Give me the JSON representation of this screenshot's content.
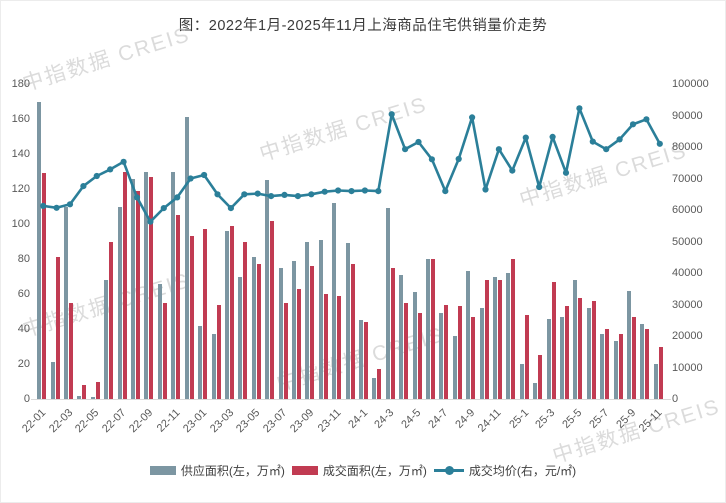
{
  "title": "图：2022年1月-2025年11月上海商品住宅供销量价走势",
  "watermark_text": "中指数据 CREIS",
  "legend": [
    {
      "label": "供应面积(左，万㎡)",
      "color": "#7C96A2",
      "type": "bar"
    },
    {
      "label": "成交面积(左，万㎡)",
      "color": "#C13B52",
      "type": "bar"
    },
    {
      "label": "成交均价(右，元/㎡)",
      "color": "#2B7F99",
      "type": "line"
    }
  ],
  "chart_data": {
    "type": "bar+line combo, dual axis",
    "title": "图：2022年1月-2025年11月上海商品住宅供销量价走势",
    "categories": [
      "22-01",
      "22-02",
      "22-03",
      "22-04",
      "22-05",
      "22-06",
      "22-07",
      "22-08",
      "22-09",
      "22-10",
      "22-11",
      "22-12",
      "23-01",
      "23-02",
      "23-03",
      "23-04",
      "23-05",
      "23-06",
      "23-07",
      "23-08",
      "23-09",
      "23-10",
      "23-11",
      "23-12",
      "24-1",
      "24-2",
      "24-3",
      "24-4",
      "24-5",
      "24-6",
      "24-7",
      "24-8",
      "24-9",
      "24-10",
      "24-11",
      "24-12",
      "25-1",
      "25-2",
      "25-3",
      "25-4",
      "25-5",
      "25-6",
      "25-7",
      "25-8",
      "25-9",
      "25-10",
      "25-11"
    ],
    "x_tick_labels": [
      "22-01",
      "22-03",
      "22-05",
      "22-07",
      "22-09",
      "22-11",
      "23-01",
      "23-03",
      "23-05",
      "23-07",
      "23-09",
      "23-11",
      "24-1",
      "24-3",
      "24-5",
      "24-7",
      "24-9",
      "24-11",
      "25-1",
      "25-3",
      "25-5",
      "25-7",
      "25-9",
      "25-11"
    ],
    "series": [
      {
        "name": "供应面积(左，万㎡)",
        "type": "bar",
        "axis": "left",
        "color": "#7C96A2",
        "values": [
          170,
          21,
          110,
          2,
          1,
          68,
          110,
          126,
          130,
          66,
          130,
          161,
          42,
          37,
          96,
          70,
          81,
          125,
          75,
          79,
          90,
          91,
          112,
          89,
          45,
          12,
          109,
          71,
          61,
          80,
          49,
          36,
          73,
          52,
          70,
          72,
          20,
          9,
          46,
          47,
          68,
          52,
          37,
          33,
          62,
          43,
          20
        ]
      },
      {
        "name": "成交面积(左，万㎡)",
        "type": "bar",
        "axis": "left",
        "color": "#C13B52",
        "values": [
          129,
          81,
          55,
          8,
          10,
          90,
          130,
          119,
          127,
          55,
          105,
          93,
          97,
          54,
          99,
          90,
          77,
          102,
          55,
          63,
          76,
          60,
          59,
          77,
          44,
          17,
          75,
          55,
          49,
          80,
          54,
          53,
          47,
          68,
          68,
          80,
          48,
          25,
          67,
          53,
          58,
          56,
          40,
          37,
          47,
          40,
          30
        ]
      },
      {
        "name": "成交均价(右，元/㎡)",
        "type": "line",
        "axis": "right",
        "color": "#2B7F99",
        "values": [
          61300,
          60700,
          61800,
          67600,
          70800,
          72900,
          75300,
          64000,
          56300,
          60600,
          64000,
          70000,
          71100,
          65000,
          60600,
          65000,
          65200,
          64400,
          64800,
          64400,
          65000,
          65800,
          66200,
          66000,
          66200,
          66000,
          90400,
          79300,
          81600,
          76100,
          66000,
          76200,
          89400,
          66500,
          79300,
          72500,
          83000,
          67300,
          83200,
          71800,
          92300,
          81700,
          79300,
          82400,
          87200,
          88800,
          81000
        ]
      }
    ],
    "left_axis": {
      "min": 0,
      "max": 180,
      "step": 20,
      "ticks": [
        0,
        20,
        40,
        60,
        80,
        100,
        120,
        140,
        160,
        180
      ]
    },
    "right_axis": {
      "min": 0,
      "max": 100000,
      "step": 10000,
      "ticks": [
        0,
        10000,
        20000,
        30000,
        40000,
        50000,
        60000,
        70000,
        80000,
        90000,
        100000
      ]
    },
    "grid": false,
    "legend_position": "bottom"
  }
}
